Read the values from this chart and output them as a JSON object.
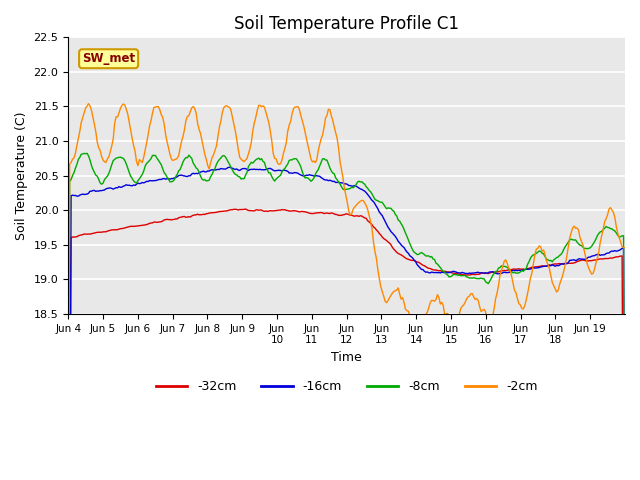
{
  "title": "Soil Temperature Profile C1",
  "xlabel": "Time",
  "ylabel": "Soil Temperature (C)",
  "ylim": [
    18.5,
    22.5
  ],
  "colors": {
    "-32cm": "#dd0000",
    "-16cm": "#0000dd",
    "-8cm": "#00aa00",
    "-2cm": "#ff8800"
  },
  "annotation_text": "SW_met",
  "annotation_bg": "#ffff99",
  "annotation_border": "#cc9900",
  "bg_color": "#e8e8e8",
  "grid_color": "#ffffff",
  "title_fontsize": 12,
  "n_points": 384,
  "days": 16,
  "xtick_labels": [
    "Jun 4",
    "Jun 5",
    "Jun 6",
    "Jun 7",
    "Jun 8",
    "Jun 9",
    "Jun\n10",
    "Jun\n11",
    "Jun\n12",
    "Jun\n13",
    "Jun\n14",
    "Jun\n15",
    "Jun\n16",
    "Jun\n17",
    "Jun\n18",
    "Jun 19"
  ]
}
